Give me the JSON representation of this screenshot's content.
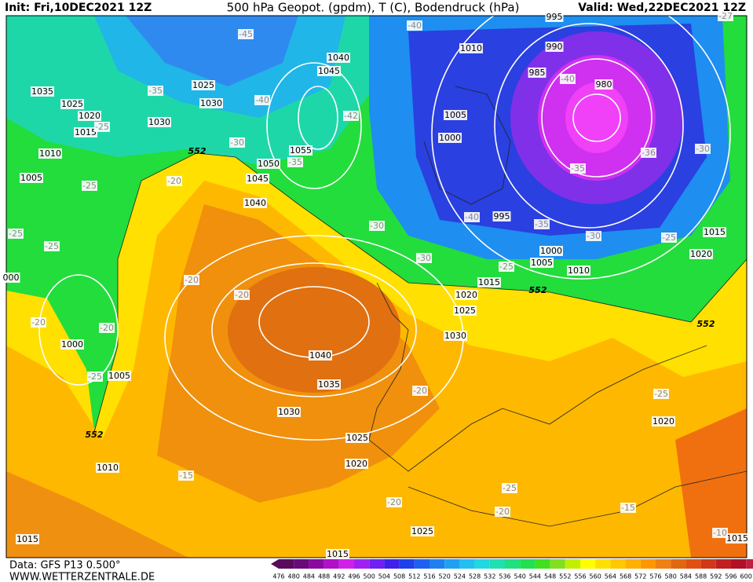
{
  "header": {
    "init": "Init: Fri,10DEC2021 12Z",
    "title": "500 hPa Geopot. (gpdm), T (C), Bodendruck (hPa)",
    "valid": "Valid: Wed,22DEC2021 12Z"
  },
  "footer": {
    "data": "Data: GFS P13 0.500°",
    "site": "WWW.WETTERZENTRALE.DE"
  },
  "colorbar": {
    "levels": [
      476,
      480,
      484,
      488,
      492,
      496,
      500,
      504,
      508,
      512,
      516,
      520,
      524,
      528,
      532,
      536,
      540,
      544,
      548,
      552,
      556,
      560,
      564,
      568,
      572,
      576,
      580,
      584,
      588,
      592,
      596,
      600
    ]
  },
  "map": {
    "pressure_labels": [
      "995",
      "1010",
      "990",
      "985",
      "980",
      "1040",
      "1045",
      "1025",
      "1030",
      "1035",
      "1025",
      "1020",
      "1015",
      "1030",
      "1005",
      "1000",
      "1055",
      "1050",
      "1045",
      "1040",
      "1010",
      "1005",
      "000",
      "995",
      "1000",
      "1005",
      "1010",
      "1015",
      "1020",
      "1025",
      "1030",
      "1015",
      "1020",
      "1040",
      "1035",
      "1030",
      "1000",
      "1005",
      "1025",
      "1020",
      "1010",
      "1020",
      "1025",
      "1015",
      "1015",
      "1015"
    ],
    "temperature_labels": [
      "-40",
      "-45",
      "-35",
      "-40",
      "-42",
      "-25",
      "-30",
      "-35",
      "-20",
      "-25",
      "-25",
      "-25",
      "-30",
      "-40",
      "-35",
      "-30",
      "-25",
      "-30",
      "-25",
      "-20",
      "-20",
      "-20",
      "-20",
      "-25",
      "-20",
      "-25",
      "-15",
      "-25",
      "-20",
      "-20",
      "-15",
      "-10",
      "-40",
      "-35",
      "-36",
      "-30",
      "-27"
    ],
    "geopotential_labels": [
      "552",
      "552",
      "552",
      "552"
    ]
  }
}
